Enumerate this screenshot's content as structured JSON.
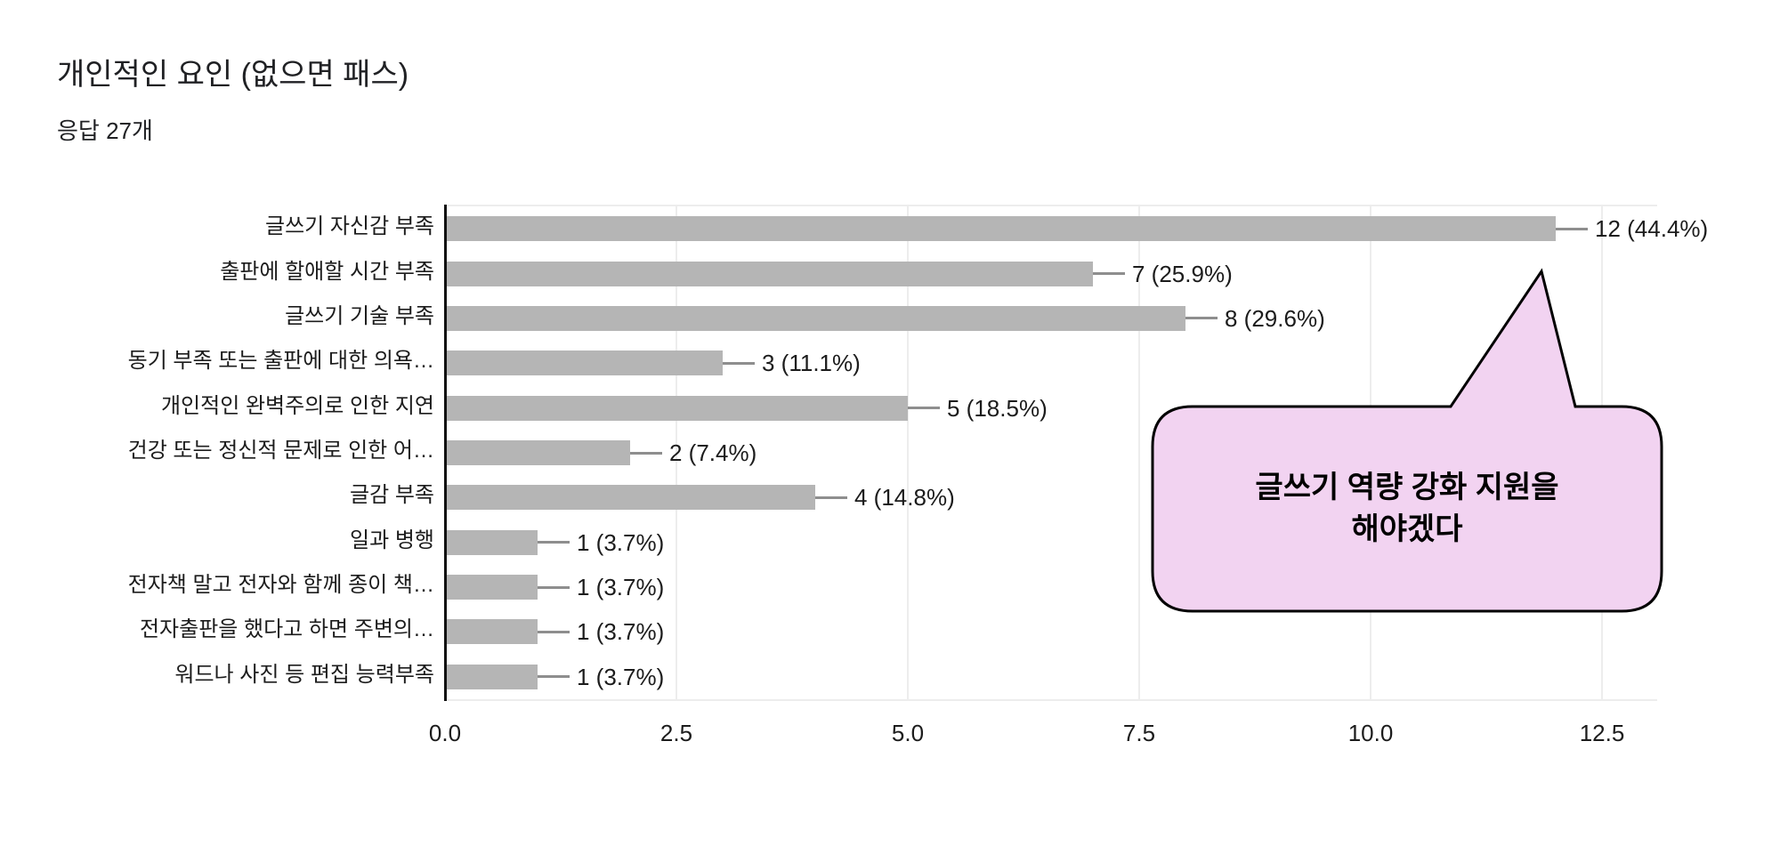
{
  "header": {
    "title": "개인적인 요인 (없으면 패스)",
    "subtitle": "응답 27개"
  },
  "chart_data": {
    "type": "bar",
    "orientation": "horizontal",
    "title": "개인적인 요인 (없으면 패스)",
    "subtitle": "응답 27개",
    "categories": [
      "글쓰기 자신감 부족",
      "출판에 할애할 시간 부족",
      "글쓰기 기술 부족",
      "동기 부족 또는 출판에 대한 의욕…",
      "개인적인 완벽주의로 인한 지연",
      "건강 또는 정신적 문제로 인한 어…",
      "글감 부족",
      "일과 병행",
      "전자책 말고 전자와 함께 종이 책…",
      "전자출판을 했다고 하면 주변의…",
      "워드나 사진 등 편집 능력부족"
    ],
    "values": [
      12,
      7,
      8,
      3,
      5,
      2,
      4,
      1,
      1,
      1,
      1
    ],
    "value_labels": [
      "12 (44.4%)",
      "7 (25.9%)",
      "8 (29.6%)",
      "3 (11.1%)",
      "5 (18.5%)",
      "2 (7.4%)",
      "4 (14.8%)",
      "1 (3.7%)",
      "1 (3.7%)",
      "1 (3.7%)",
      "1 (3.7%)"
    ],
    "x_tick_values": [
      0,
      2.5,
      5,
      7.5,
      10,
      12.5
    ],
    "x_tick_labels": [
      "0.0",
      "2.5",
      "5.0",
      "7.5",
      "10.0",
      "12.5"
    ],
    "xlim": [
      0,
      13.1
    ],
    "grid": "vertical-light",
    "legend": "none",
    "bar_color": "#b5b5b5",
    "connector_color": "#8e8e8e",
    "gridline_color": "#ededed",
    "axis_color": "#111111"
  },
  "annotation": {
    "lines": [
      "글쓰기 역량 강화 지원을",
      "해야겠다"
    ],
    "fill_color": "#f2d3f1",
    "border_color": "#000000"
  }
}
